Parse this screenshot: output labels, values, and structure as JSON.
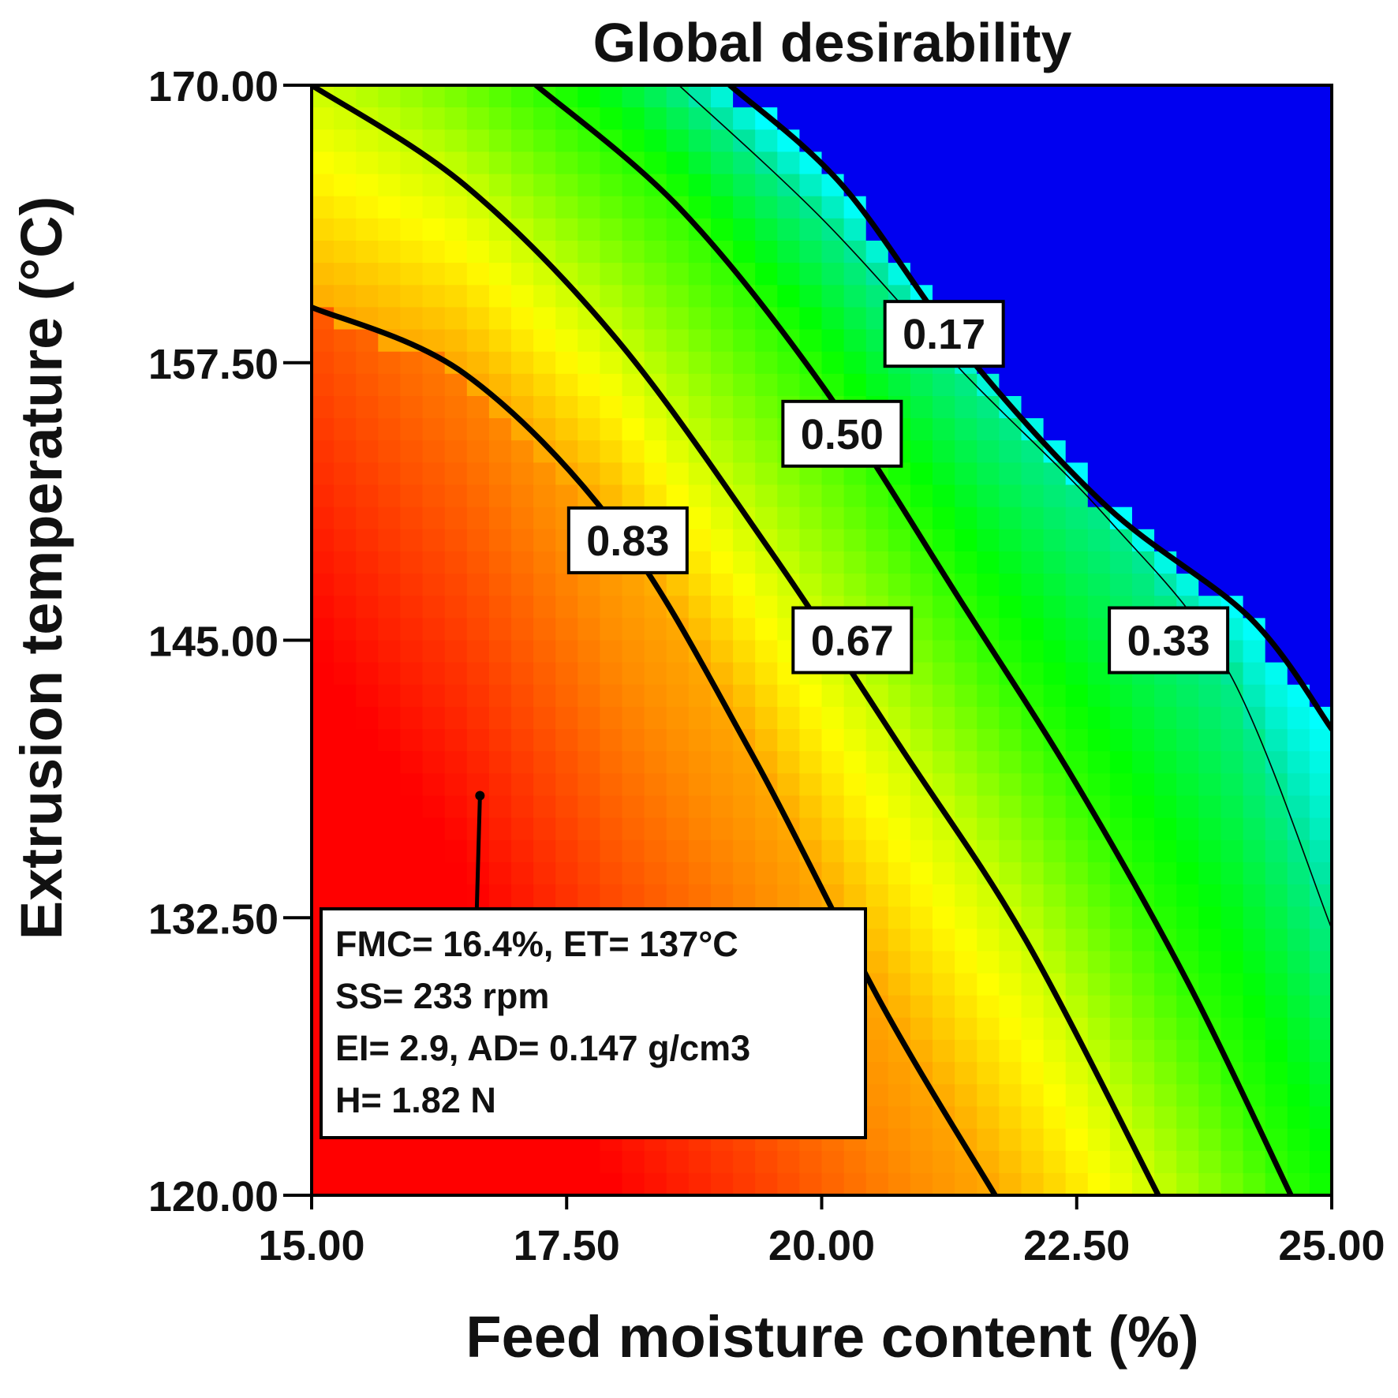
{
  "chart_data": {
    "type": "heatmap",
    "subtype": "contour",
    "title": "Global desirability",
    "xlabel": "Feed moisture content (%)",
    "ylabel": "Extrusion temperature (°C)",
    "xlim": [
      15,
      25
    ],
    "ylim": [
      120,
      170
    ],
    "xticks": [
      "15.00",
      "17.50",
      "20.00",
      "22.50",
      "25.00"
    ],
    "xtick_values": [
      15,
      17.5,
      20,
      22.5,
      25
    ],
    "yticks": [
      "120.00",
      "132.50",
      "145.00",
      "157.50",
      "170.00"
    ],
    "ytick_values": [
      120,
      132.5,
      145,
      157.5,
      170
    ],
    "colormap": [
      "#ff0000",
      "#ff8c00",
      "#ffff00",
      "#7fff00",
      "#00ff00",
      "#00e6a0",
      "#00ffff",
      "#0000ff"
    ],
    "contours": [
      {
        "level": 0.83,
        "label": "0.83",
        "label_at": [
          18.1,
          149.5
        ],
        "points": [
          [
            15,
            160.0
          ],
          [
            16.5,
            157.0
          ],
          [
            18.0,
            150.0
          ],
          [
            19.3,
            140.0
          ],
          [
            20.6,
            128.5
          ],
          [
            21.7,
            120
          ]
        ]
      },
      {
        "level": 0.67,
        "label": "0.67",
        "label_at": [
          20.3,
          145.0
        ],
        "points": [
          [
            15,
            170.0
          ],
          [
            16.5,
            165.5
          ],
          [
            18.0,
            158.5
          ],
          [
            19.5,
            149.0
          ],
          [
            20.8,
            140.0
          ],
          [
            22.0,
            131.5
          ],
          [
            23.3,
            120
          ]
        ]
      },
      {
        "level": 0.5,
        "label": "0.50",
        "label_at": [
          20.2,
          154.3
        ],
        "points": [
          [
            17.2,
            170.0
          ],
          [
            18.6,
            164.5
          ],
          [
            20.0,
            156.5
          ],
          [
            21.4,
            146.5
          ],
          [
            22.5,
            138.5
          ],
          [
            23.6,
            129.5
          ],
          [
            24.6,
            120
          ]
        ]
      },
      {
        "level": 0.33,
        "label": "0.33",
        "label_at": [
          23.4,
          145.0
        ],
        "points": [
          [
            18.6,
            170.0
          ],
          [
            20.0,
            164.0
          ],
          [
            21.4,
            157.0
          ],
          [
            22.8,
            150.5
          ],
          [
            24.0,
            143.5
          ],
          [
            25.0,
            132.0
          ]
        ]
      },
      {
        "level": 0.17,
        "label": "0.17",
        "label_at": [
          21.2,
          158.8
        ],
        "points": [
          [
            19.1,
            170.0
          ],
          [
            20.2,
            165.5
          ],
          [
            21.4,
            158.0
          ],
          [
            22.8,
            151.0
          ],
          [
            24.2,
            146.0
          ],
          [
            25.0,
            141.0
          ]
        ]
      }
    ],
    "annotation": {
      "point": [
        16.65,
        138.0
      ],
      "lines": [
        "FMC= 16.4%,  ET= 137°C",
        "SS= 233 rpm",
        "EI= 2.9,  AD= 0.147 g/cm3",
        "H= 1.82 N"
      ]
    }
  }
}
